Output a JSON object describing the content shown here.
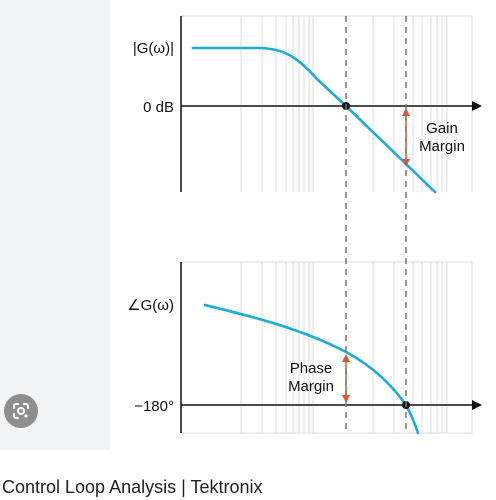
{
  "result": {
    "caption": "Control Loop Analysis | Tektronix"
  },
  "icons": {
    "lens": "google-lens-icon"
  },
  "diagram": {
    "magnitude_label": "|G(ω)|",
    "zero_db_label": "0 dB",
    "gain_margin_line1": "Gain",
    "gain_margin_line2": "Margin",
    "phase_label": "∠G(ω)",
    "minus180_label": "−180°",
    "phase_margin_line1": "Phase",
    "phase_margin_line2": "Margin",
    "colors": {
      "curve": "#1eaad8",
      "margin_arrow": "#e8542f",
      "axis": "#111111",
      "grid": "#dcdcdc",
      "crossover_dashed": "#777777"
    }
  }
}
